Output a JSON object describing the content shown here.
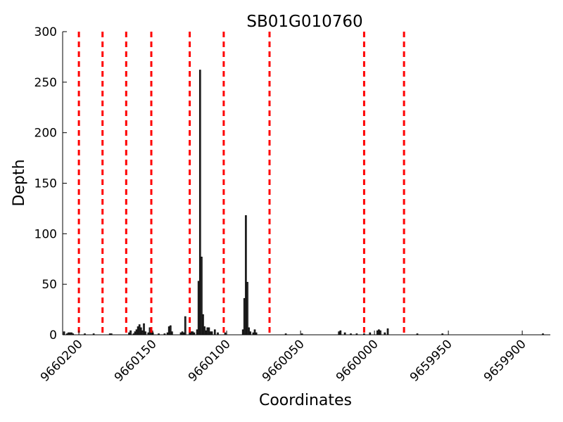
{
  "chart_data": {
    "type": "bar",
    "title": "SB01G010760",
    "xlabel": "Coordinates",
    "ylabel": "Depth",
    "x_reversed": true,
    "xlim": [
      9660211,
      9659881
    ],
    "ylim": [
      0,
      300
    ],
    "x_ticks": [
      {
        "value": 9660200,
        "label": "9660200"
      },
      {
        "value": 9660150,
        "label": "9660150"
      },
      {
        "value": 9660100,
        "label": "9660100"
      },
      {
        "value": 9660050,
        "label": "9660050"
      },
      {
        "value": 9660000,
        "label": "9660000"
      },
      {
        "value": 9659950,
        "label": "9659950"
      },
      {
        "value": 9659900,
        "label": "9659900"
      }
    ],
    "y_ticks": [
      {
        "value": 0,
        "label": "0"
      },
      {
        "value": 50,
        "label": "50"
      },
      {
        "value": 100,
        "label": "100"
      },
      {
        "value": 150,
        "label": "150"
      },
      {
        "value": 200,
        "label": "200"
      },
      {
        "value": 250,
        "label": "250"
      },
      {
        "value": 300,
        "label": "300"
      }
    ],
    "bars": [
      {
        "x": 9660210,
        "y": 3
      },
      {
        "x": 9660208,
        "y": 1
      },
      {
        "x": 9660207,
        "y": 2
      },
      {
        "x": 9660206,
        "y": 2
      },
      {
        "x": 9660205,
        "y": 2
      },
      {
        "x": 9660204,
        "y": 1
      },
      {
        "x": 9660196,
        "y": 1
      },
      {
        "x": 9660190,
        "y": 1
      },
      {
        "x": 9660179,
        "y": 1
      },
      {
        "x": 9660178,
        "y": 1
      },
      {
        "x": 9660166,
        "y": 2
      },
      {
        "x": 9660165,
        "y": 4
      },
      {
        "x": 9660163,
        "y": 1
      },
      {
        "x": 9660162,
        "y": 3
      },
      {
        "x": 9660161,
        "y": 5
      },
      {
        "x": 9660160,
        "y": 8
      },
      {
        "x": 9660159,
        "y": 10
      },
      {
        "x": 9660158,
        "y": 7
      },
      {
        "x": 9660157,
        "y": 4
      },
      {
        "x": 9660156,
        "y": 11
      },
      {
        "x": 9660155,
        "y": 3
      },
      {
        "x": 9660153,
        "y": 2
      },
      {
        "x": 9660152,
        "y": 7
      },
      {
        "x": 9660151,
        "y": 4
      },
      {
        "x": 9660150,
        "y": 2
      },
      {
        "x": 9660146,
        "y": 1
      },
      {
        "x": 9660142,
        "y": 1
      },
      {
        "x": 9660140,
        "y": 2
      },
      {
        "x": 9660139,
        "y": 8
      },
      {
        "x": 9660138,
        "y": 9
      },
      {
        "x": 9660137,
        "y": 3
      },
      {
        "x": 9660131,
        "y": 2
      },
      {
        "x": 9660130,
        "y": 3
      },
      {
        "x": 9660129,
        "y": 2
      },
      {
        "x": 9660128,
        "y": 18
      },
      {
        "x": 9660125,
        "y": 2
      },
      {
        "x": 9660124,
        "y": 3
      },
      {
        "x": 9660123,
        "y": 3
      },
      {
        "x": 9660122,
        "y": 2
      },
      {
        "x": 9660120,
        "y": 5
      },
      {
        "x": 9660119,
        "y": 53
      },
      {
        "x": 9660118,
        "y": 262
      },
      {
        "x": 9660117,
        "y": 77
      },
      {
        "x": 9660116,
        "y": 20
      },
      {
        "x": 9660115,
        "y": 8
      },
      {
        "x": 9660114,
        "y": 4
      },
      {
        "x": 9660113,
        "y": 7
      },
      {
        "x": 9660112,
        "y": 7
      },
      {
        "x": 9660111,
        "y": 3
      },
      {
        "x": 9660110,
        "y": 3
      },
      {
        "x": 9660108,
        "y": 5
      },
      {
        "x": 9660106,
        "y": 2
      },
      {
        "x": 9660101,
        "y": 2
      },
      {
        "x": 9660089,
        "y": 5
      },
      {
        "x": 9660088,
        "y": 36
      },
      {
        "x": 9660087,
        "y": 118
      },
      {
        "x": 9660086,
        "y": 52
      },
      {
        "x": 9660085,
        "y": 7
      },
      {
        "x": 9660084,
        "y": 3
      },
      {
        "x": 9660082,
        "y": 2
      },
      {
        "x": 9660081,
        "y": 5
      },
      {
        "x": 9660080,
        "y": 2
      },
      {
        "x": 9660060,
        "y": 1
      },
      {
        "x": 9660049,
        "y": 1
      },
      {
        "x": 9660024,
        "y": 3
      },
      {
        "x": 9660023,
        "y": 4
      },
      {
        "x": 9660020,
        "y": 2
      },
      {
        "x": 9660016,
        "y": 1
      },
      {
        "x": 9660012,
        "y": 1
      },
      {
        "x": 9660007,
        "y": 1
      },
      {
        "x": 9660003,
        "y": 2
      },
      {
        "x": 9659998,
        "y": 4
      },
      {
        "x": 9659997,
        "y": 5
      },
      {
        "x": 9659996,
        "y": 4
      },
      {
        "x": 9659993,
        "y": 2
      },
      {
        "x": 9659991,
        "y": 6
      },
      {
        "x": 9659971,
        "y": 1
      },
      {
        "x": 9659954,
        "y": 1
      },
      {
        "x": 9659886,
        "y": 1
      }
    ],
    "exon_boundaries": [
      9660200,
      9660184,
      9660168,
      9660151,
      9660125,
      9660102,
      9660071,
      9660007,
      9659980
    ],
    "colors": {
      "bar_fill": "#333333",
      "bar_edge": "#000000",
      "boundary_line": "#ff0000"
    }
  }
}
